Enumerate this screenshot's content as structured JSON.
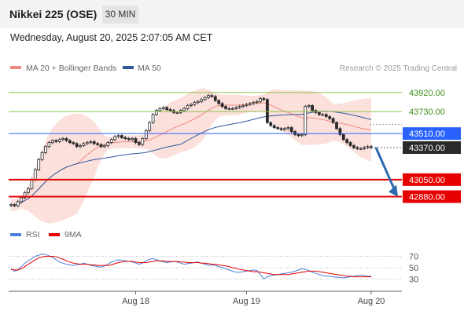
{
  "header": {
    "symbol": "Nikkei 225 (OSE)",
    "timeframe": "30 MIN",
    "datetime": "Wednesday, August 20, 2025 2:07:05 AM CET"
  },
  "colors": {
    "candle": "#2b2b2b",
    "ma20": "#f08a80",
    "bollinger_fill": "#fbd5d0",
    "ma50": "#2e5a9c",
    "resistance": "#8bc34a",
    "pivot": "#2962ff",
    "support": "#e60000",
    "arrow": "#2d6bb0",
    "rsi": "#4e7fd9",
    "rsi_ma": "#e60000"
  },
  "chart_data": [
    {
      "type": "line",
      "chart": "price",
      "legend": [
        {
          "label": "MA 20 + Bollinger Bands",
          "color": "#f08a80"
        },
        {
          "label": "MA 50",
          "color": "#2e5a9c"
        }
      ],
      "source": "Research © 2025 Trading Central",
      "ylim": [
        42790,
        44060
      ],
      "x_ticks": [
        "Aug 18",
        "Aug 19",
        "Aug 20"
      ],
      "levels": [
        {
          "value": 43920,
          "label": "43920.00",
          "kind": "resistance"
        },
        {
          "value": 43730,
          "label": "43730.00",
          "kind": "resistance"
        },
        {
          "value": 43510,
          "label": "43510.00",
          "kind": "pivot"
        },
        {
          "value": 43370,
          "label": "43370.00",
          "kind": "last"
        },
        {
          "value": 43050,
          "label": "43050.00",
          "kind": "support"
        },
        {
          "value": 42880,
          "label": "42880.00",
          "kind": "support"
        }
      ],
      "last_price": 43370,
      "forecast": {
        "from": 43370,
        "to": 42880,
        "direction": "down"
      },
      "series": [
        {
          "name": "Close",
          "key": "close",
          "values": [
            42800,
            42790,
            42830,
            42870,
            42920,
            42960,
            43050,
            43150,
            43250,
            43320,
            43380,
            43420,
            43440,
            43430,
            43450,
            43460,
            43440,
            43420,
            43410,
            43380,
            43390,
            43410,
            43420,
            43430,
            43410,
            43400,
            43380,
            43390,
            43420,
            43450,
            43480,
            43490,
            43470,
            43460,
            43450,
            43460,
            43420,
            43400,
            43460,
            43540,
            43620,
            43700,
            43740,
            43760,
            43770,
            43750,
            43740,
            43720,
            43720,
            43740,
            43760,
            43790,
            43800,
            43820,
            43830,
            43850,
            43870,
            43890,
            43880,
            43840,
            43810,
            43780,
            43760,
            43760,
            43760,
            43770,
            43780,
            43790,
            43800,
            43810,
            43820,
            43830,
            43860,
            43850,
            43620,
            43590,
            43570,
            43560,
            43550,
            43560,
            43570,
            43530,
            43500,
            43490,
            43500,
            43780,
            43790,
            43740,
            43720,
            43700,
            43700,
            43680,
            43660,
            43620,
            43560,
            43500,
            43450,
            43420,
            43390,
            43370,
            43360,
            43360,
            43370,
            43380,
            43370
          ]
        }
      ]
    },
    {
      "type": "line",
      "chart": "rsi",
      "legend": [
        {
          "label": "RSI",
          "color": "#4e7fd9"
        },
        {
          "label": "9MA",
          "color": "#e60000"
        }
      ],
      "ylim": [
        10,
        90
      ],
      "y_ticks": [
        70,
        50,
        30
      ],
      "x_ticks": [
        "Aug 18",
        "Aug 19",
        "Aug 20"
      ],
      "series": [
        {
          "name": "RSI",
          "key": "rsi",
          "values": [
            48,
            44,
            46,
            52,
            58,
            62,
            66,
            70,
            72,
            74,
            73,
            71,
            68,
            64,
            60,
            58,
            56,
            55,
            54,
            55,
            56,
            58,
            56,
            54,
            53,
            52,
            51,
            53,
            56,
            60,
            62,
            64,
            63,
            62,
            61,
            60,
            58,
            56,
            58,
            62,
            65,
            66,
            64,
            62,
            60,
            59,
            60,
            61,
            60,
            58,
            56,
            57,
            58,
            59,
            60,
            58,
            56,
            54,
            55,
            54,
            52,
            50,
            48,
            46,
            44,
            42,
            42,
            43,
            44,
            45,
            46,
            45,
            38,
            30,
            34,
            36,
            37,
            38,
            39,
            40,
            41,
            42,
            44,
            46,
            48,
            47,
            45,
            42,
            40,
            38,
            36,
            35,
            35,
            34,
            33,
            33,
            32,
            33,
            34,
            35,
            36,
            37,
            36,
            35,
            35
          ]
        },
        {
          "name": "9MA",
          "key": "rsi_ma",
          "values": [
            47,
            46,
            46,
            48,
            52,
            56,
            60,
            64,
            67,
            69,
            70,
            70,
            70,
            69,
            67,
            65,
            62,
            60,
            58,
            57,
            56,
            56,
            56,
            55,
            55,
            54,
            54,
            54,
            54,
            55,
            57,
            59,
            60,
            61,
            61,
            61,
            60,
            59,
            59,
            59,
            60,
            61,
            62,
            62,
            62,
            61,
            61,
            61,
            61,
            60,
            60,
            59,
            59,
            59,
            59,
            58,
            58,
            57,
            56,
            56,
            55,
            54,
            53,
            52,
            50,
            49,
            47,
            46,
            45,
            44,
            43,
            43,
            42,
            41,
            40,
            39,
            38,
            38,
            38,
            38,
            38,
            39,
            40,
            41,
            42,
            43,
            44,
            44,
            44,
            43,
            42,
            41,
            40,
            39,
            38,
            37,
            36,
            35,
            35,
            34,
            34,
            34,
            34,
            34,
            34
          ]
        }
      ]
    }
  ]
}
